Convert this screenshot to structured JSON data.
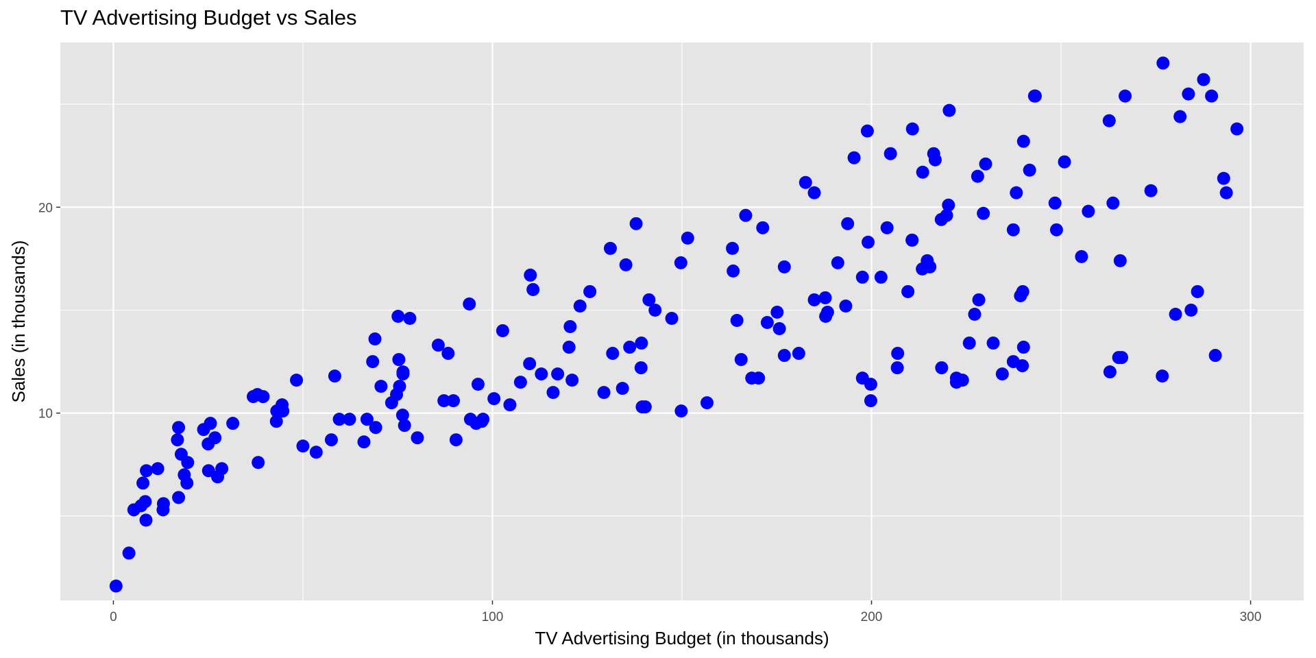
{
  "chart_data": {
    "type": "scatter",
    "title": "TV Advertising Budget vs Sales",
    "xlabel": "TV Advertising Budget (in thousands)",
    "ylabel": "Sales (in thousands)",
    "xlim": [
      -14,
      314
    ],
    "ylim": [
      0.9,
      28.0
    ],
    "x_ticks": [
      0,
      100,
      200,
      300
    ],
    "y_ticks": [
      10,
      20
    ],
    "x_minor": [
      50,
      150,
      250
    ],
    "y_minor": [
      5,
      15,
      25
    ],
    "grid": true,
    "background": "#e5e5e5",
    "gridline_color": "#ffffff",
    "point_color": "#0000ff",
    "points": [
      [
        0.7,
        1.6
      ],
      [
        4.1,
        3.2
      ],
      [
        5.4,
        5.3
      ],
      [
        7.3,
        5.5
      ],
      [
        7.8,
        6.6
      ],
      [
        8.4,
        5.7
      ],
      [
        8.6,
        4.8
      ],
      [
        8.7,
        7.2
      ],
      [
        11.7,
        7.3
      ],
      [
        13.1,
        5.3
      ],
      [
        13.2,
        5.6
      ],
      [
        16.9,
        8.7
      ],
      [
        17.2,
        5.9
      ],
      [
        17.2,
        9.3
      ],
      [
        17.9,
        8.0
      ],
      [
        18.7,
        7.0
      ],
      [
        19.4,
        6.6
      ],
      [
        19.6,
        7.6
      ],
      [
        23.8,
        9.2
      ],
      [
        25.0,
        8.5
      ],
      [
        25.1,
        7.2
      ],
      [
        25.6,
        9.5
      ],
      [
        26.8,
        8.8
      ],
      [
        27.5,
        6.9
      ],
      [
        28.6,
        7.3
      ],
      [
        31.5,
        9.5
      ],
      [
        36.9,
        10.8
      ],
      [
        38.0,
        10.9
      ],
      [
        38.2,
        7.6
      ],
      [
        39.5,
        10.8
      ],
      [
        43.0,
        9.6
      ],
      [
        43.1,
        10.1
      ],
      [
        44.5,
        10.4
      ],
      [
        44.7,
        10.1
      ],
      [
        48.3,
        11.6
      ],
      [
        50.0,
        8.4
      ],
      [
        53.5,
        8.1
      ],
      [
        57.5,
        8.7
      ],
      [
        58.4,
        11.8
      ],
      [
        59.6,
        9.7
      ],
      [
        62.3,
        9.7
      ],
      [
        66.1,
        8.6
      ],
      [
        66.9,
        9.7
      ],
      [
        68.4,
        12.5
      ],
      [
        69.0,
        13.6
      ],
      [
        69.2,
        9.3
      ],
      [
        70.6,
        11.3
      ],
      [
        73.4,
        10.5
      ],
      [
        74.7,
        10.9
      ],
      [
        75.1,
        14.7
      ],
      [
        75.3,
        12.6
      ],
      [
        75.5,
        11.3
      ],
      [
        76.3,
        9.9
      ],
      [
        76.4,
        11.9
      ],
      [
        76.4,
        12.0
      ],
      [
        76.8,
        9.4
      ],
      [
        78.2,
        14.6
      ],
      [
        80.2,
        8.8
      ],
      [
        85.7,
        13.3
      ],
      [
        87.2,
        10.6
      ],
      [
        88.3,
        12.9
      ],
      [
        89.7,
        10.6
      ],
      [
        90.4,
        8.7
      ],
      [
        93.9,
        15.3
      ],
      [
        94.2,
        9.7
      ],
      [
        95.7,
        9.5
      ],
      [
        96.2,
        11.4
      ],
      [
        97.2,
        9.6
      ],
      [
        97.5,
        9.7
      ],
      [
        100.4,
        10.7
      ],
      [
        102.7,
        14.0
      ],
      [
        104.6,
        10.4
      ],
      [
        107.4,
        11.5
      ],
      [
        109.8,
        12.4
      ],
      [
        110.0,
        16.7
      ],
      [
        110.7,
        16.0
      ],
      [
        112.9,
        11.9
      ],
      [
        116.0,
        11.0
      ],
      [
        117.2,
        11.9
      ],
      [
        120.2,
        13.2
      ],
      [
        120.5,
        14.2
      ],
      [
        121.0,
        11.6
      ],
      [
        123.1,
        15.2
      ],
      [
        125.7,
        15.9
      ],
      [
        129.4,
        11.0
      ],
      [
        131.1,
        18.0
      ],
      [
        131.7,
        12.9
      ],
      [
        134.3,
        11.2
      ],
      [
        135.2,
        17.2
      ],
      [
        136.2,
        13.2
      ],
      [
        137.9,
        19.2
      ],
      [
        139.2,
        12.2
      ],
      [
        139.3,
        13.4
      ],
      [
        139.5,
        10.3
      ],
      [
        140.3,
        10.3
      ],
      [
        141.3,
        15.5
      ],
      [
        142.9,
        15.0
      ],
      [
        147.3,
        14.6
      ],
      [
        149.7,
        17.3
      ],
      [
        149.8,
        10.1
      ],
      [
        151.5,
        18.5
      ],
      [
        156.6,
        10.5
      ],
      [
        163.3,
        18.0
      ],
      [
        163.5,
        16.9
      ],
      [
        164.5,
        14.5
      ],
      [
        165.6,
        12.6
      ],
      [
        166.8,
        19.6
      ],
      [
        168.4,
        11.7
      ],
      [
        170.2,
        11.7
      ],
      [
        171.3,
        19.0
      ],
      [
        172.5,
        14.4
      ],
      [
        175.1,
        14.9
      ],
      [
        175.7,
        14.1
      ],
      [
        177.0,
        12.8
      ],
      [
        177.0,
        17.1
      ],
      [
        180.8,
        12.9
      ],
      [
        182.6,
        21.2
      ],
      [
        184.9,
        20.7
      ],
      [
        184.9,
        15.5
      ],
      [
        187.8,
        15.6
      ],
      [
        187.9,
        14.7
      ],
      [
        188.4,
        14.9
      ],
      [
        191.1,
        17.3
      ],
      [
        193.2,
        15.2
      ],
      [
        193.7,
        19.2
      ],
      [
        195.4,
        22.4
      ],
      [
        197.6,
        16.6
      ],
      [
        197.6,
        11.7
      ],
      [
        198.9,
        23.7
      ],
      [
        199.1,
        18.3
      ],
      [
        199.8,
        10.6
      ],
      [
        199.8,
        11.4
      ],
      [
        202.5,
        16.6
      ],
      [
        204.1,
        19.0
      ],
      [
        205.0,
        22.6
      ],
      [
        206.8,
        12.2
      ],
      [
        206.9,
        12.9
      ],
      [
        209.6,
        15.9
      ],
      [
        210.7,
        18.4
      ],
      [
        210.8,
        23.8
      ],
      [
        213.4,
        17.0
      ],
      [
        213.5,
        21.7
      ],
      [
        214.7,
        17.4
      ],
      [
        215.4,
        17.1
      ],
      [
        216.4,
        22.6
      ],
      [
        216.8,
        22.3
      ],
      [
        218.4,
        19.4
      ],
      [
        218.5,
        12.2
      ],
      [
        219.8,
        19.6
      ],
      [
        220.3,
        20.1
      ],
      [
        220.5,
        24.7
      ],
      [
        222.4,
        11.7
      ],
      [
        222.4,
        11.5
      ],
      [
        224.0,
        11.6
      ],
      [
        225.8,
        13.4
      ],
      [
        227.2,
        14.8
      ],
      [
        228.0,
        21.5
      ],
      [
        228.3,
        15.5
      ],
      [
        229.5,
        19.7
      ],
      [
        230.1,
        22.1
      ],
      [
        232.1,
        13.4
      ],
      [
        234.5,
        11.9
      ],
      [
        237.4,
        12.5
      ],
      [
        237.4,
        18.9
      ],
      [
        238.2,
        20.7
      ],
      [
        239.3,
        15.7
      ],
      [
        239.8,
        12.3
      ],
      [
        239.9,
        15.9
      ],
      [
        240.1,
        13.2
      ],
      [
        240.1,
        23.2
      ],
      [
        241.7,
        21.8
      ],
      [
        243.2,
        25.4
      ],
      [
        248.4,
        20.2
      ],
      [
        248.8,
        18.9
      ],
      [
        250.9,
        22.2
      ],
      [
        255.4,
        17.6
      ],
      [
        257.2,
        19.8
      ],
      [
        262.7,
        24.2
      ],
      [
        262.9,
        12.0
      ],
      [
        265.2,
        12.7
      ],
      [
        265.6,
        17.4
      ],
      [
        266.9,
        25.4
      ],
      [
        273.7,
        20.8
      ],
      [
        276.7,
        11.8
      ],
      [
        276.9,
        27.0
      ],
      [
        280.2,
        14.8
      ],
      [
        281.4,
        24.4
      ],
      [
        283.6,
        25.5
      ],
      [
        284.3,
        15.0
      ],
      [
        286.0,
        15.9
      ],
      [
        287.6,
        26.2
      ],
      [
        289.7,
        25.4
      ],
      [
        290.7,
        12.8
      ],
      [
        292.9,
        21.4
      ],
      [
        293.6,
        20.7
      ],
      [
        296.4,
        23.8
      ],
      [
        263.7,
        20.2
      ],
      [
        266.0,
        12.7
      ],
      [
        243.0,
        25.4
      ],
      [
        210.7,
        18.4
      ]
    ]
  }
}
